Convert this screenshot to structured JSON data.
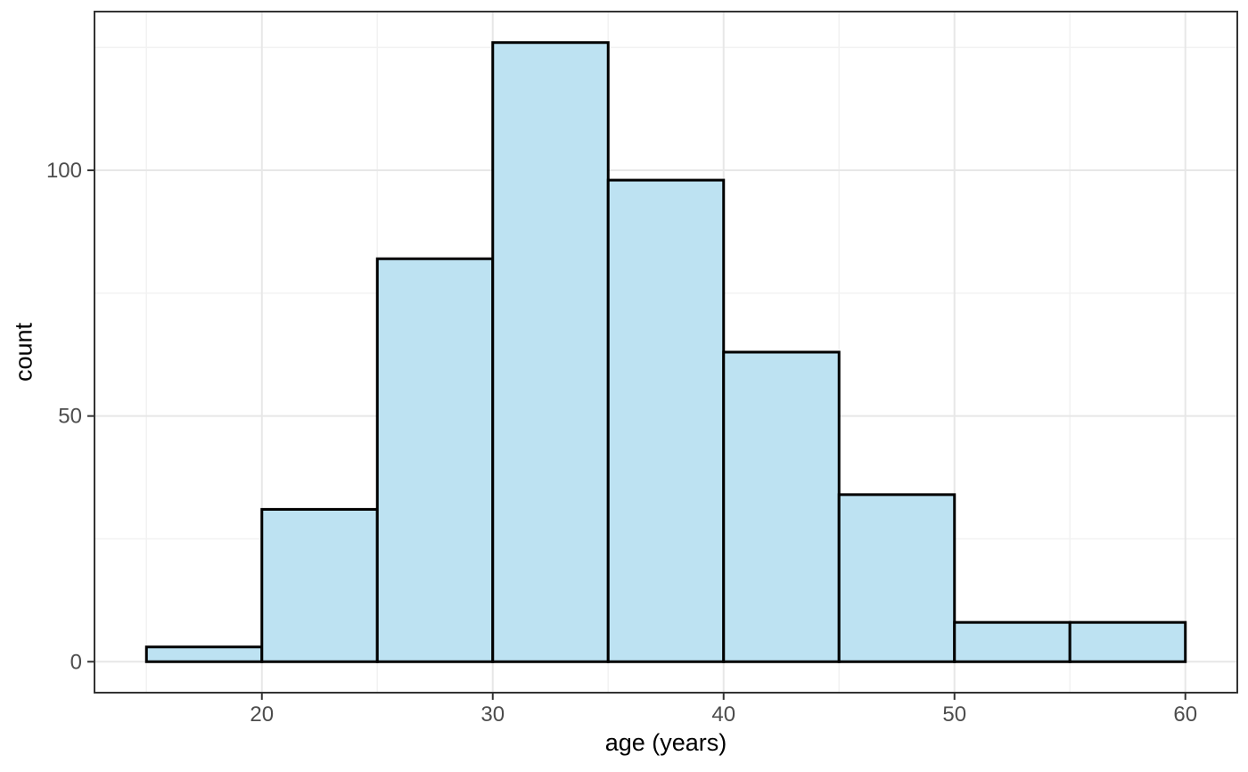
{
  "figure": {
    "background": "#FFFFFF"
  },
  "chart_data": {
    "type": "bar",
    "subtype": "histogram",
    "title": "",
    "xlabel": "age (years)",
    "ylabel": "count",
    "bin_edges": [
      15,
      20,
      25,
      30,
      35,
      40,
      45,
      50,
      55,
      60
    ],
    "counts": [
      3,
      31,
      82,
      126,
      98,
      63,
      34,
      8,
      8
    ],
    "x_ticks": [
      20,
      30,
      40,
      50,
      60
    ],
    "y_ticks": [
      0,
      50,
      100
    ],
    "x_minor_ticks": [
      15,
      25,
      35,
      45,
      55
    ],
    "y_minor_ticks": [
      25,
      75,
      125
    ],
    "x_domain": [
      12.75,
      62.25
    ],
    "y_domain": [
      -6.3,
      132.3
    ],
    "grid": true,
    "legend_position": "none",
    "colors": {
      "bar_fill": "#BDE2F2",
      "bar_stroke": "#000000",
      "panel_border": "#333333",
      "grid_major": "#E7E7E7",
      "grid_minor": "#F2F2F2",
      "tick_mark": "#333333",
      "tick_label": "#4D4D4D",
      "axis_title": "#000000",
      "background": "#FFFFFF"
    }
  }
}
